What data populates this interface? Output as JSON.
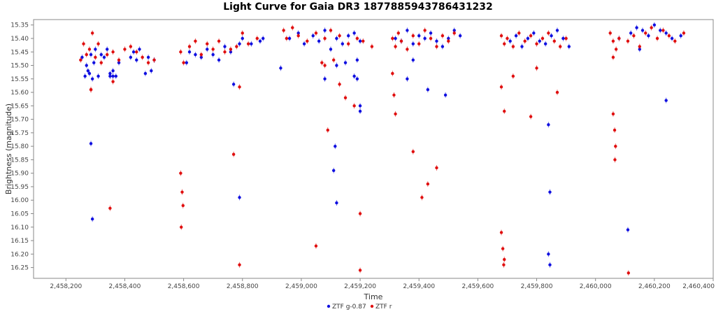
{
  "chart_data": {
    "type": "scatter",
    "title": "Light Curve for Gaia DR3 1877885943786431232",
    "xlabel": "Time",
    "ylabel": "Brightness (magnitude)",
    "xlim": [
      2458090,
      2460400
    ],
    "ylim": [
      16.29,
      15.33
    ],
    "y_inverted": true,
    "x_ticks": [
      2458200,
      2458400,
      2458600,
      2458800,
      2459000,
      2459200,
      2459400,
      2459600,
      2459800,
      2460000,
      2460200,
      2460400
    ],
    "x_tick_labels": [
      "2,458,200",
      "2,458,400",
      "2,458,600",
      "2,458,800",
      "2,459,000",
      "2,459,200",
      "2,459,400",
      "2,459,600",
      "2,459,800",
      "2,460,000",
      "2,460,200",
      "2,460,400"
    ],
    "y_ticks": [
      15.35,
      15.4,
      15.45,
      15.5,
      15.55,
      15.6,
      15.65,
      15.7,
      15.75,
      15.8,
      15.85,
      15.9,
      15.95,
      16.0,
      16.05,
      16.1,
      16.15,
      16.2,
      16.25
    ],
    "y_tick_labels": [
      "15.35",
      "15.40",
      "15.45",
      "15.50",
      "15.55",
      "15.60",
      "15.65",
      "15.70",
      "15.75",
      "15.80",
      "15.85",
      "15.90",
      "15.95",
      "16.00",
      "16.05",
      "16.10",
      "16.15",
      "16.20",
      "16.25"
    ],
    "grid": false,
    "legend_position": "bottom-center",
    "series": [
      {
        "name": "ZTF g-0.87",
        "color": "#1010e0",
        "x": [
          2458255,
          2458265,
          2458270,
          2458275,
          2458280,
          2458285,
          2458290,
          2458295,
          2458300,
          2458310,
          2458320,
          2458330,
          2458340,
          2458350,
          2458360,
          2458370,
          2458380,
          2458420,
          2458430,
          2458440,
          2458450,
          2458470,
          2458480,
          2458490,
          2458500,
          2458285,
          2458290,
          2458360,
          2458350,
          2458610,
          2458620,
          2458640,
          2458660,
          2458680,
          2458700,
          2458720,
          2458740,
          2458760,
          2458770,
          2458790,
          2458800,
          2458830,
          2458860,
          2458870,
          2458790,
          2458930,
          2458960,
          2458990,
          2459010,
          2459040,
          2459060,
          2459080,
          2459100,
          2459120,
          2459140,
          2459160,
          2459180,
          2459200,
          2459080,
          2459120,
          2459150,
          2459180,
          2459190,
          2459200,
          2459200,
          2459115,
          2459110,
          2459120,
          2459190,
          2459320,
          2459340,
          2459360,
          2459380,
          2459400,
          2459420,
          2459440,
          2459460,
          2459480,
          2459500,
          2459520,
          2459540,
          2459380,
          2459360,
          2459430,
          2459490,
          2459710,
          2459730,
          2459750,
          2459770,
          2459790,
          2459810,
          2459830,
          2459850,
          2459870,
          2459890,
          2459910,
          2459840,
          2459845,
          2459840,
          2459845,
          2460080,
          2460120,
          2460140,
          2460160,
          2460180,
          2460200,
          2460220,
          2460240,
          2460260,
          2460290,
          2460110,
          2460240,
          2460150
        ],
        "y": [
          15.47,
          15.54,
          15.5,
          15.52,
          15.53,
          15.46,
          15.55,
          15.49,
          15.44,
          15.54,
          15.46,
          15.47,
          15.44,
          15.53,
          15.54,
          15.54,
          15.49,
          15.47,
          15.45,
          15.48,
          15.44,
          15.53,
          15.47,
          15.52,
          15.48,
          15.79,
          16.07,
          15.52,
          15.54,
          15.49,
          15.45,
          15.46,
          15.47,
          15.44,
          15.46,
          15.48,
          15.43,
          15.45,
          15.57,
          15.42,
          15.4,
          15.42,
          15.41,
          15.4,
          15.99,
          15.51,
          15.4,
          15.38,
          15.42,
          15.39,
          15.41,
          15.37,
          15.44,
          15.4,
          15.42,
          15.39,
          15.38,
          15.41,
          15.55,
          15.5,
          15.49,
          15.54,
          15.55,
          15.65,
          15.67,
          15.8,
          15.89,
          16.01,
          15.48,
          15.4,
          15.41,
          15.37,
          15.42,
          15.39,
          15.4,
          15.38,
          15.41,
          15.43,
          15.4,
          15.37,
          15.39,
          15.48,
          15.55,
          15.59,
          15.61,
          15.41,
          15.39,
          15.43,
          15.4,
          15.38,
          15.41,
          15.42,
          15.39,
          15.37,
          15.4,
          15.43,
          15.72,
          15.97,
          16.2,
          16.24,
          15.4,
          15.38,
          15.36,
          15.37,
          15.39,
          15.35,
          15.37,
          15.38,
          15.4,
          15.39,
          16.11,
          15.63,
          15.44
        ]
      },
      {
        "name": "ZTF r",
        "color": "#e01010",
        "x": [
          2458250,
          2458260,
          2458270,
          2458280,
          2458285,
          2458290,
          2458300,
          2458310,
          2458320,
          2458340,
          2458360,
          2458380,
          2458400,
          2458420,
          2458440,
          2458460,
          2458480,
          2458500,
          2458285,
          2458350,
          2458360,
          2458590,
          2458600,
          2458620,
          2458640,
          2458660,
          2458680,
          2458700,
          2458720,
          2458740,
          2458760,
          2458780,
          2458800,
          2458820,
          2458850,
          2458590,
          2458595,
          2458598,
          2458592,
          2458770,
          2458790,
          2458790,
          2458940,
          2458950,
          2458970,
          2458990,
          2459020,
          2459050,
          2459080,
          2459100,
          2459130,
          2459160,
          2459190,
          2459210,
          2459240,
          2459070,
          2459090,
          2459110,
          2459130,
          2459150,
          2459180,
          2459200,
          2459080,
          2459050,
          2459200,
          2459310,
          2459320,
          2459330,
          2459340,
          2459360,
          2459380,
          2459400,
          2459420,
          2459440,
          2459460,
          2459480,
          2459500,
          2459520,
          2459310,
          2459315,
          2459320,
          2459380,
          2459410,
          2459430,
          2459460,
          2459680,
          2459690,
          2459700,
          2459720,
          2459740,
          2459760,
          2459780,
          2459800,
          2459820,
          2459840,
          2459860,
          2459880,
          2459900,
          2459680,
          2459690,
          2459720,
          2459780,
          2459800,
          2459870,
          2459680,
          2459685,
          2459690,
          2459688,
          2460050,
          2460060,
          2460070,
          2460080,
          2460060,
          2460065,
          2460068,
          2460066,
          2460060,
          2460110,
          2460130,
          2460150,
          2460170,
          2460190,
          2460210,
          2460230,
          2460250,
          2460270,
          2460300,
          2460112
        ],
        "y": [
          15.48,
          15.42,
          15.46,
          15.44,
          15.59,
          15.38,
          15.47,
          15.42,
          15.49,
          15.46,
          15.45,
          15.48,
          15.44,
          15.43,
          15.45,
          15.47,
          15.49,
          15.48,
          15.59,
          16.03,
          15.56,
          15.45,
          15.49,
          15.43,
          15.41,
          15.46,
          15.42,
          15.44,
          15.41,
          15.45,
          15.44,
          15.43,
          15.38,
          15.42,
          15.4,
          15.9,
          15.97,
          16.02,
          16.1,
          15.83,
          15.58,
          16.24,
          15.37,
          15.4,
          15.36,
          15.39,
          15.41,
          15.38,
          15.4,
          15.37,
          15.39,
          15.42,
          15.4,
          15.41,
          15.43,
          15.49,
          15.74,
          15.48,
          15.57,
          15.62,
          15.65,
          16.05,
          15.5,
          16.17,
          16.26,
          15.4,
          15.43,
          15.38,
          15.41,
          15.44,
          15.39,
          15.42,
          15.37,
          15.4,
          15.43,
          15.39,
          15.41,
          15.38,
          15.53,
          15.61,
          15.68,
          15.82,
          15.99,
          15.94,
          15.88,
          15.39,
          15.42,
          15.4,
          15.43,
          15.38,
          15.41,
          15.39,
          15.42,
          15.4,
          15.38,
          15.41,
          15.43,
          15.4,
          15.58,
          15.67,
          15.54,
          15.69,
          15.51,
          15.6,
          16.12,
          16.18,
          16.22,
          16.24,
          15.38,
          15.41,
          15.44,
          15.4,
          15.68,
          15.74,
          15.8,
          15.85,
          15.47,
          15.41,
          15.39,
          15.43,
          15.38,
          15.36,
          15.4,
          15.37,
          15.39,
          15.41,
          15.38,
          16.27
        ]
      }
    ]
  }
}
